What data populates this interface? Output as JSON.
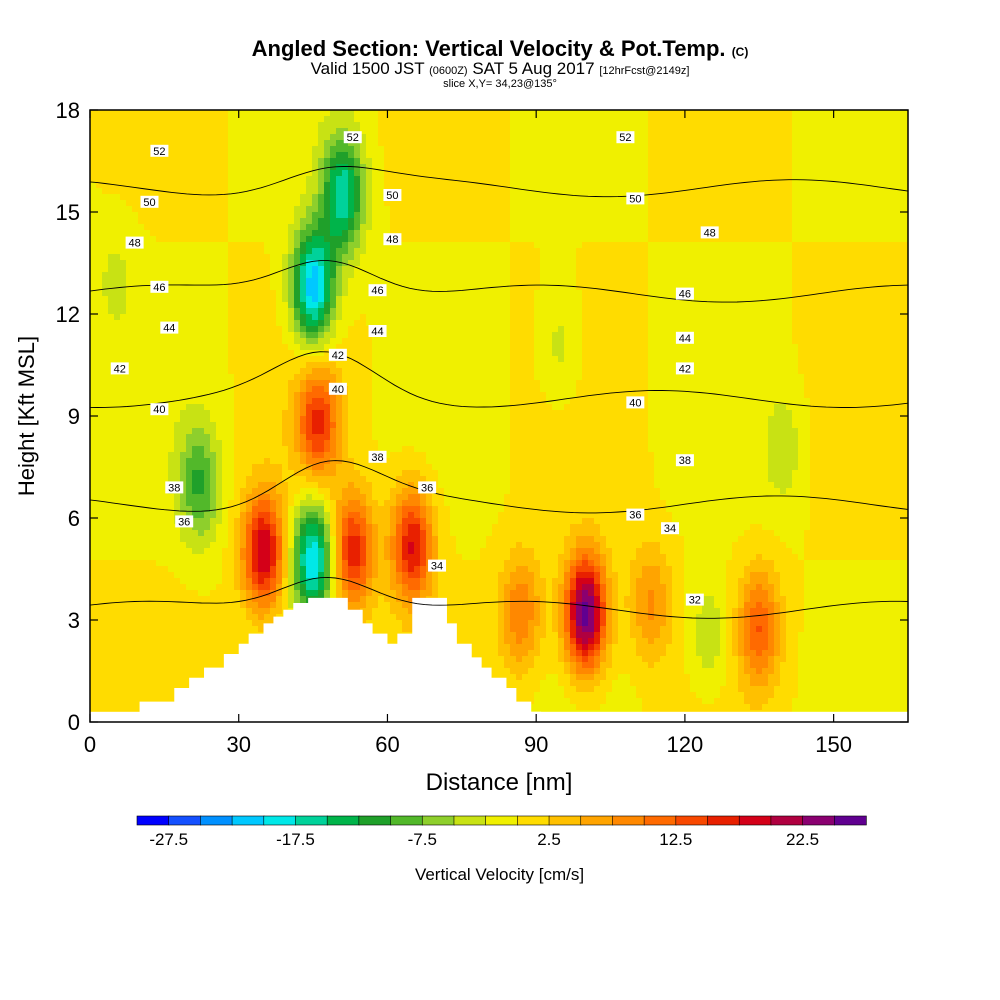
{
  "header": {
    "title_main": "Angled Section: Vertical Velocity & Pot.Temp.",
    "title_unit": "(C)",
    "valid_prefix": "Valid 1500 JST",
    "valid_zulu": "(0600Z)",
    "valid_date": "SAT 5 Aug 2017",
    "valid_fcst": "[12hrFcst@2149z]",
    "slice": "slice X,Y= 34,23@135°"
  },
  "chart_data": {
    "type": "heatmap",
    "xlabel": "Distance [nm]",
    "ylabel": "Height [Kft MSL]",
    "xlim": [
      0,
      165
    ],
    "ylim": [
      0,
      18
    ],
    "xticks": [
      "0",
      "30",
      "60",
      "90",
      "120",
      "150"
    ],
    "yticks": [
      "0",
      "3",
      "6",
      "9",
      "12",
      "15",
      "18"
    ],
    "colorbar": {
      "label": "Vertical Velocity [cm/s]",
      "tick_labels": [
        "-27.5",
        "-17.5",
        "-7.5",
        "2.5",
        "12.5",
        "22.5"
      ],
      "min": -30,
      "max": 27.5,
      "step": 2.5,
      "colors": [
        "#0000ff",
        "#1450ff",
        "#0090ff",
        "#00c8ff",
        "#00e8e8",
        "#00d29a",
        "#00b44a",
        "#1fa02a",
        "#52b82a",
        "#8ecf2c",
        "#c8e214",
        "#f0f000",
        "#ffdc00",
        "#ffc000",
        "#ffa400",
        "#ff8800",
        "#ff6a00",
        "#f84800",
        "#e82000",
        "#d40018",
        "#b00040",
        "#8a0070",
        "#600090"
      ]
    },
    "vertical_velocity_features": [
      {
        "x": 35,
        "y": 5.0,
        "value": 20
      },
      {
        "x": 45,
        "y": 4.8,
        "value": -20
      },
      {
        "x": 53,
        "y": 5.0,
        "value": 17
      },
      {
        "x": 65,
        "y": 5.2,
        "value": 18
      },
      {
        "x": 46,
        "y": 8.8,
        "value": 15
      },
      {
        "x": 45,
        "y": 12.8,
        "value": -22
      },
      {
        "x": 51,
        "y": 15.5,
        "value": -17
      },
      {
        "x": 100,
        "y": 3.2,
        "value": 27
      },
      {
        "x": 87,
        "y": 3.2,
        "value": 10
      },
      {
        "x": 113,
        "y": 3.5,
        "value": 8
      },
      {
        "x": 135,
        "y": 2.8,
        "value": 12
      },
      {
        "x": 125,
        "y": 2.5,
        "value": -5
      },
      {
        "x": 22,
        "y": 7.0,
        "value": -10
      },
      {
        "x": 5,
        "y": 13.0,
        "value": -3
      },
      {
        "x": 95,
        "y": 11.0,
        "value": -4
      },
      {
        "x": 140,
        "y": 8.0,
        "value": -4
      }
    ],
    "potential_temperature_isotherms": [
      32,
      34,
      36,
      38,
      40,
      42,
      44,
      46,
      48,
      50,
      52
    ],
    "isotherm_labels": [
      {
        "text": "52",
        "x": 14,
        "y": 16.8
      },
      {
        "text": "52",
        "x": 53,
        "y": 17.2
      },
      {
        "text": "52",
        "x": 108,
        "y": 17.2
      },
      {
        "text": "50",
        "x": 12,
        "y": 15.3
      },
      {
        "text": "50",
        "x": 61,
        "y": 15.5
      },
      {
        "text": "50",
        "x": 110,
        "y": 15.4
      },
      {
        "text": "48",
        "x": 9,
        "y": 14.1
      },
      {
        "text": "48",
        "x": 61,
        "y": 14.2
      },
      {
        "text": "48",
        "x": 125,
        "y": 14.4
      },
      {
        "text": "46",
        "x": 14,
        "y": 12.8
      },
      {
        "text": "46",
        "x": 58,
        "y": 12.7
      },
      {
        "text": "46",
        "x": 120,
        "y": 12.6
      },
      {
        "text": "44",
        "x": 16,
        "y": 11.6
      },
      {
        "text": "44",
        "x": 58,
        "y": 11.5
      },
      {
        "text": "44",
        "x": 120,
        "y": 11.3
      },
      {
        "text": "42",
        "x": 6,
        "y": 10.4
      },
      {
        "text": "42",
        "x": 50,
        "y": 10.8
      },
      {
        "text": "42",
        "x": 120,
        "y": 10.4
      },
      {
        "text": "40",
        "x": 14,
        "y": 9.2
      },
      {
        "text": "40",
        "x": 50,
        "y": 9.8
      },
      {
        "text": "40",
        "x": 110,
        "y": 9.4
      },
      {
        "text": "38",
        "x": 17,
        "y": 6.9
      },
      {
        "text": "38",
        "x": 58,
        "y": 7.8
      },
      {
        "text": "38",
        "x": 120,
        "y": 7.7
      },
      {
        "text": "36",
        "x": 19,
        "y": 5.9
      },
      {
        "text": "36",
        "x": 68,
        "y": 6.9
      },
      {
        "text": "36",
        "x": 110,
        "y": 6.1
      },
      {
        "text": "34",
        "x": 70,
        "y": 4.6
      },
      {
        "text": "34",
        "x": 117,
        "y": 5.7
      },
      {
        "text": "32",
        "x": 122,
        "y": 3.6
      }
    ],
    "terrain_profile": [
      [
        10,
        0
      ],
      [
        10,
        0.6
      ],
      [
        17,
        0.6
      ],
      [
        17,
        1.0
      ],
      [
        20,
        1.0
      ],
      [
        20,
        1.3
      ],
      [
        23,
        1.3
      ],
      [
        23,
        1.6
      ],
      [
        27,
        1.6
      ],
      [
        27,
        2.0
      ],
      [
        30,
        2.0
      ],
      [
        30,
        2.3
      ],
      [
        32,
        2.3
      ],
      [
        32,
        2.6
      ],
      [
        35,
        2.6
      ],
      [
        35,
        2.9
      ],
      [
        37,
        2.9
      ],
      [
        37,
        3.1
      ],
      [
        39,
        3.1
      ],
      [
        39,
        3.3
      ],
      [
        41,
        3.3
      ],
      [
        41,
        3.5
      ],
      [
        44,
        3.5
      ],
      [
        44,
        3.65
      ],
      [
        52,
        3.65
      ],
      [
        52,
        3.3
      ],
      [
        55,
        3.3
      ],
      [
        55,
        2.9
      ],
      [
        57,
        2.9
      ],
      [
        57,
        2.6
      ],
      [
        60,
        2.6
      ],
      [
        60,
        2.3
      ],
      [
        62,
        2.3
      ],
      [
        62,
        2.6
      ],
      [
        65,
        2.6
      ],
      [
        65,
        3.65
      ],
      [
        72,
        3.65
      ],
      [
        72,
        2.9
      ],
      [
        74,
        2.9
      ],
      [
        74,
        2.3
      ],
      [
        77,
        2.3
      ],
      [
        77,
        1.9
      ],
      [
        79,
        1.9
      ],
      [
        79,
        1.6
      ],
      [
        81,
        1.6
      ],
      [
        81,
        1.3
      ],
      [
        84,
        1.3
      ],
      [
        84,
        1.0
      ],
      [
        86,
        1.0
      ],
      [
        86,
        0.6
      ],
      [
        89,
        0.6
      ],
      [
        89,
        0.3
      ],
      [
        91,
        0.3
      ],
      [
        91,
        0
      ]
    ],
    "data_floor": 0.3
  }
}
